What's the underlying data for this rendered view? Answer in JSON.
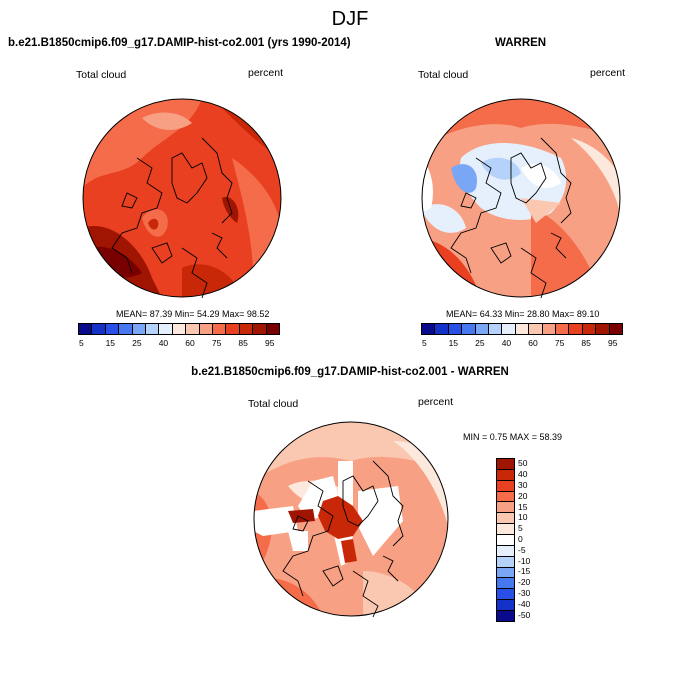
{
  "title": "DJF",
  "panel1": {
    "title": "b.e21.B1850cmip6.f09_g17.DAMIP-hist-co2.001 (yrs 1990-2014)",
    "variable": "Total cloud",
    "units": "percent",
    "stats": "MEAN=  87.39  Min=  54.29  Max=  98.52"
  },
  "panel2": {
    "title": "WARREN",
    "variable": "Total cloud",
    "units": "percent",
    "stats": "MEAN=  64.33  Min=  28.80  Max=  89.10"
  },
  "panel3": {
    "title": "b.e21.B1850cmip6.f09_g17.DAMIP-hist-co2.001 - WARREN",
    "variable": "Total cloud",
    "units": "percent",
    "stats": "MIN =   0.75 MAX =  58.39"
  },
  "colorbar_abs": {
    "colors": [
      "#0a0a8c",
      "#1432c8",
      "#2850e6",
      "#4678f0",
      "#7aa6f6",
      "#b4d2fa",
      "#e6f0fc",
      "#fce8dc",
      "#fac8b0",
      "#f8a084",
      "#f46c4a",
      "#e84020",
      "#c82808",
      "#a01402",
      "#780000"
    ],
    "ticks": [
      "5",
      "15",
      "25",
      "40",
      "60",
      "75",
      "85",
      "95"
    ]
  },
  "colorbar_diff": {
    "colors": [
      "#a01402",
      "#c82808",
      "#e84020",
      "#f46c4a",
      "#f8a084",
      "#fac8b0",
      "#fce8dc",
      "#ffffff",
      "#e6f0fc",
      "#b4d2fa",
      "#7aa6f6",
      "#4678f0",
      "#2850e6",
      "#1432c8",
      "#0a0a8c"
    ],
    "ticks": [
      "50",
      "40",
      "30",
      "20",
      "15",
      "10",
      "5",
      "0",
      "-5",
      "-10",
      "-15",
      "-20",
      "-30",
      "-40",
      "-50"
    ]
  }
}
